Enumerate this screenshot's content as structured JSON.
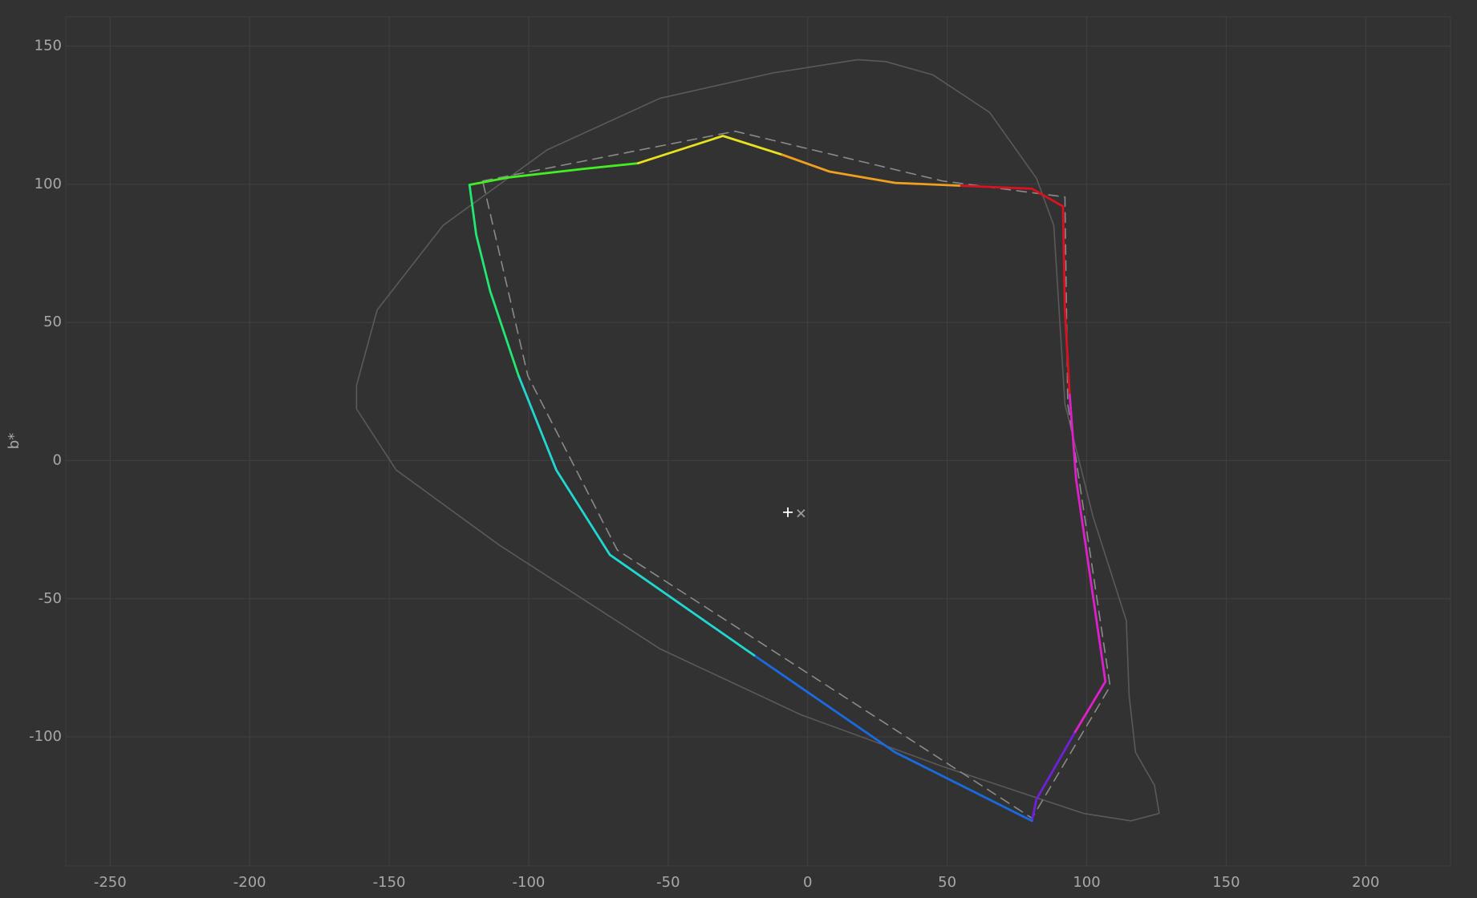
{
  "chart_data": {
    "type": "line",
    "y_label": "b*",
    "xlim": [
      -265.9,
      230.4
    ],
    "ylim": [
      -146.7,
      160.6
    ],
    "xticks": [
      -250,
      -200,
      -150,
      -100,
      -50,
      0,
      50,
      100,
      150,
      200
    ],
    "yticks": [
      -100,
      -50,
      0,
      50,
      100,
      150
    ],
    "grid": true,
    "series": [
      {
        "color": "#5a5a5a",
        "style": "solid",
        "width": 1.6,
        "x": [
          17.9,
          -12.5,
          -53,
          -93.5,
          -130.7,
          -154.3,
          -161.7,
          -161.7,
          -147.5,
          -110.4,
          -53,
          -2.4,
          48.3,
          98.9,
          115.8,
          126,
          124.3,
          117.5,
          115.2,
          114.2,
          102.3,
          92.2,
          88.2,
          82,
          65.2,
          44.9,
          28,
          17.9
        ],
        "y": [
          145.1,
          140.3,
          131.1,
          112.4,
          85.1,
          54.5,
          27.2,
          18.7,
          -3.4,
          -30.7,
          -68.1,
          -92,
          -110.7,
          -127.7,
          -130.4,
          -127.7,
          -117.5,
          -105.6,
          -85.1,
          -57.9,
          -20.4,
          20.4,
          85.1,
          102.2,
          126,
          139.6,
          144.4,
          145.1
        ]
      },
      {
        "color": "#8a8a8a",
        "style": "dashed",
        "width": 1.6,
        "x": [
          -116.5,
          -26,
          48.3,
          92.2,
          93.2,
          108.4,
          80.4,
          -68.2,
          -100.3,
          -116.5
        ],
        "y": [
          101.2,
          119.2,
          101.2,
          95.4,
          20.4,
          -81.7,
          -129.4,
          -32.4,
          30.7,
          101.2
        ]
      },
      {
        "color": "#44ee22",
        "style": "solid",
        "width": 2.8,
        "x": [
          -121.2,
          -107,
          -80,
          -60.8
        ],
        "y": [
          99.8,
          102.5,
          105.6,
          107.6
        ]
      },
      {
        "color": "#e8e020",
        "style": "solid",
        "width": 2.8,
        "x": [
          -60.8,
          -30.4,
          -9.1
        ],
        "y": [
          107.6,
          117.5,
          110.7
        ]
      },
      {
        "color": "#f0a020",
        "style": "solid",
        "width": 2.8,
        "x": [
          -9.1,
          7.8,
          31.4,
          55
        ],
        "y": [
          110.7,
          104.6,
          100.5,
          99.5
        ]
      },
      {
        "color": "#dd1020",
        "style": "solid",
        "width": 2.8,
        "x": [
          55,
          80.4,
          91.5,
          92.2,
          93.9
        ],
        "y": [
          99.5,
          98.4,
          92,
          54.5,
          23.8
        ]
      },
      {
        "color": "#dd20cc",
        "style": "solid",
        "width": 2.8,
        "x": [
          93.9,
          96.2,
          100.6,
          106.7,
          95.5
        ],
        "y": [
          23.8,
          -6.8,
          -37.5,
          -80,
          -98.8
        ]
      },
      {
        "color": "#7020dd",
        "style": "solid",
        "width": 2.8,
        "x": [
          95.5,
          82,
          80.4
        ],
        "y": [
          -98.8,
          -122.6,
          -130.4
        ]
      },
      {
        "color": "#1a6ae0",
        "style": "solid",
        "width": 2.8,
        "x": [
          80.4,
          31.4,
          -19.2
        ],
        "y": [
          -130.4,
          -105.6,
          -70.5
        ]
      },
      {
        "color": "#20d8d0",
        "style": "solid",
        "width": 2.8,
        "x": [
          -19.2,
          -70.9,
          -90.1,
          -103.6
        ],
        "y": [
          -70.5,
          -34.1,
          -3.4,
          30.7
        ]
      },
      {
        "color": "#20e870",
        "style": "solid",
        "width": 2.8,
        "x": [
          -103.6,
          -113.8,
          -118.8,
          -121.2
        ],
        "y": [
          30.7,
          61.3,
          81.7,
          99.8
        ]
      }
    ],
    "points": [
      {
        "x": -7.1,
        "y": -18.7,
        "symbol": "plus",
        "color": "#ffffff"
      },
      {
        "x": -2.4,
        "y": -19.1,
        "symbol": "cross",
        "color": "#9a9a9a"
      }
    ]
  }
}
